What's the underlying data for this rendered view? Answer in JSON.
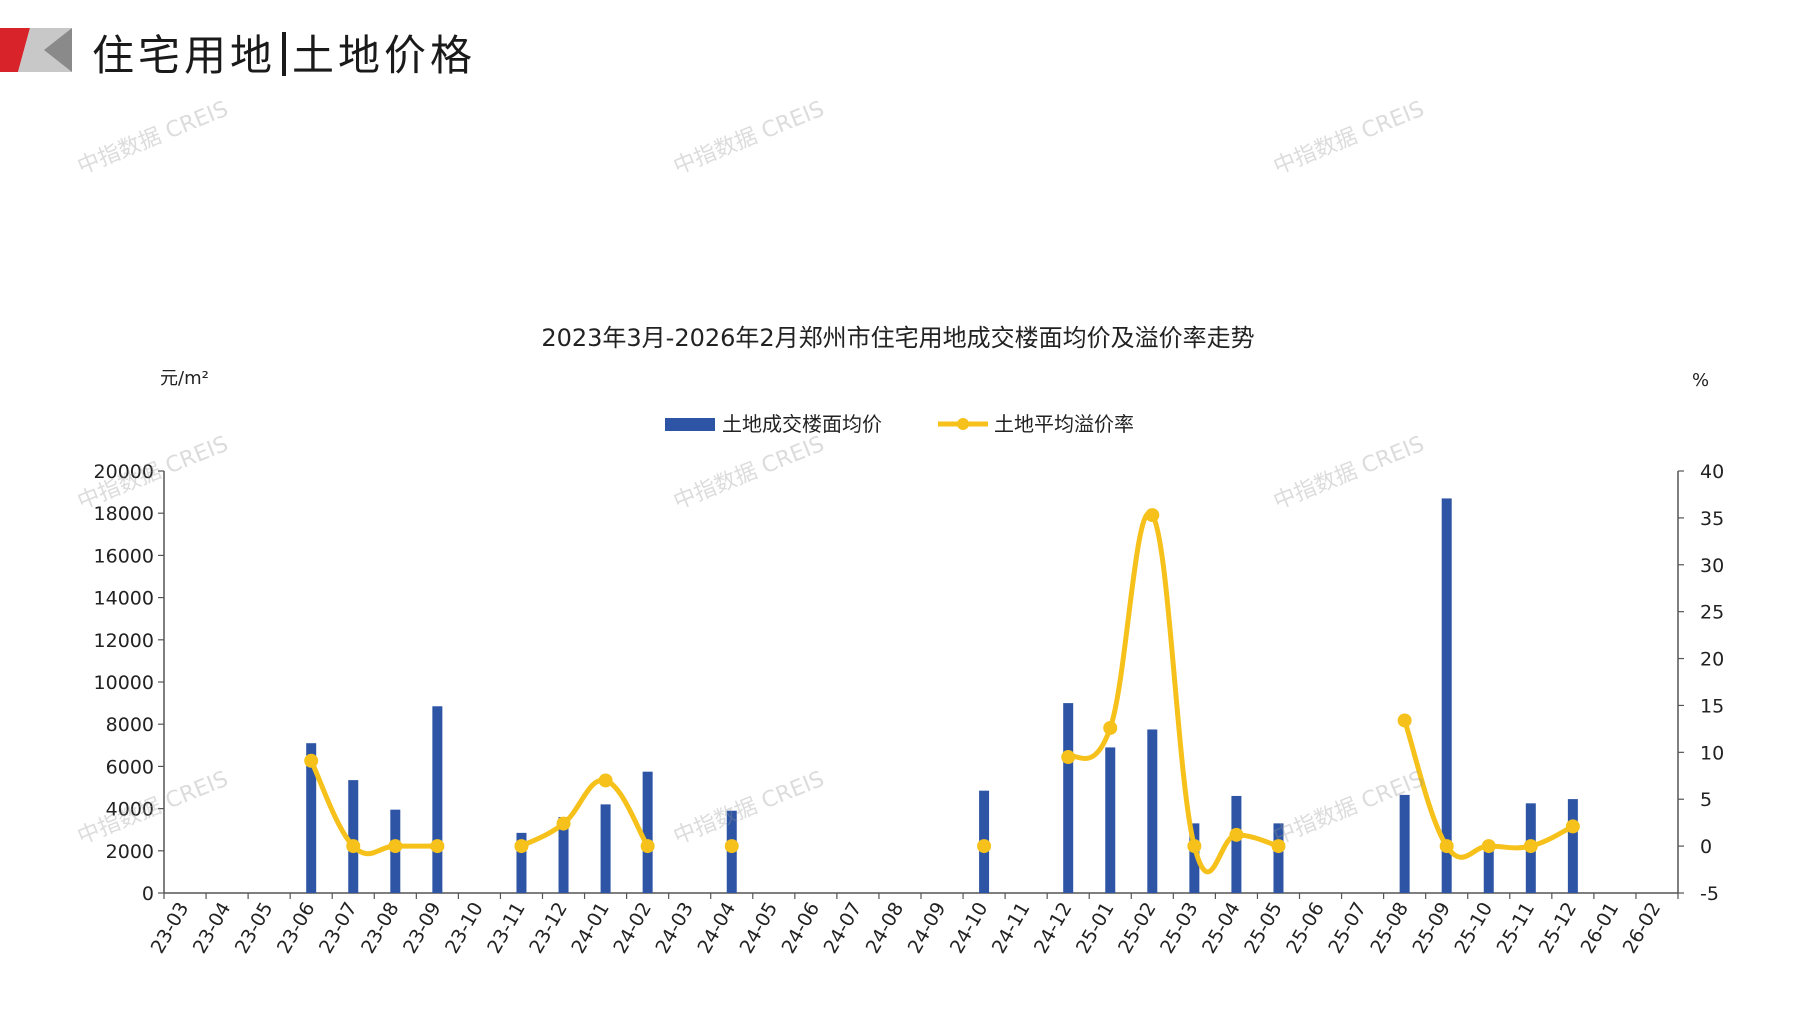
{
  "header": {
    "title_left": "住宅用地",
    "title_right": "土地价格"
  },
  "watermark": "中指数据 CREIS",
  "colors": {
    "bar": "#2e55a5",
    "line": "#f5c11a",
    "axis": "#555555",
    "logo_red": "#d9232b",
    "logo_gray": "#9a9a9a"
  },
  "chart_data": {
    "type": "bar",
    "title": "2023年3月-2026年2月郑州市住宅用地成交楼面均价及溢价率走势",
    "y_left_unit": "元/m²",
    "y_right_unit": "%",
    "legend_placement": "top",
    "grid": false,
    "categories": [
      "23-03",
      "23-04",
      "23-05",
      "23-06",
      "23-07",
      "23-08",
      "23-09",
      "23-10",
      "23-11",
      "23-12",
      "24-01",
      "24-02",
      "24-03",
      "24-04",
      "24-05",
      "24-06",
      "24-07",
      "24-08",
      "24-09",
      "24-10",
      "24-11",
      "24-12",
      "25-01",
      "25-02",
      "25-03",
      "25-04",
      "25-05",
      "25-06",
      "25-07",
      "25-08",
      "25-09",
      "25-10",
      "25-11",
      "25-12",
      "26-01",
      "26-02"
    ],
    "y_left_range": [
      0,
      20000
    ],
    "y_left_ticks": [
      0,
      2000,
      4000,
      6000,
      8000,
      10000,
      12000,
      14000,
      16000,
      18000,
      20000
    ],
    "y_right_range": [
      -5,
      40
    ],
    "y_right_ticks": [
      -5,
      0,
      5,
      10,
      15,
      20,
      25,
      30,
      35,
      40
    ],
    "series": [
      {
        "name": "土地成交楼面均价",
        "type": "bar",
        "axis": "left",
        "values": [
          null,
          null,
          null,
          7100,
          5350,
          3950,
          8850,
          null,
          2850,
          3600,
          4200,
          5750,
          null,
          3900,
          null,
          null,
          null,
          null,
          null,
          4850,
          null,
          9000,
          6900,
          7750,
          3300,
          4600,
          3300,
          null,
          null,
          4650,
          18700,
          2300,
          4250,
          4450,
          null,
          null
        ]
      },
      {
        "name": "土地平均溢价率",
        "type": "line",
        "axis": "right",
        "values": [
          null,
          null,
          null,
          9.1,
          0,
          0,
          0,
          null,
          0,
          2.4,
          7,
          0,
          null,
          0,
          null,
          null,
          null,
          null,
          null,
          0,
          null,
          9.5,
          12.6,
          35.3,
          0,
          1.2,
          0,
          null,
          null,
          13.4,
          0,
          0,
          0,
          2.1,
          null,
          null
        ]
      }
    ]
  }
}
